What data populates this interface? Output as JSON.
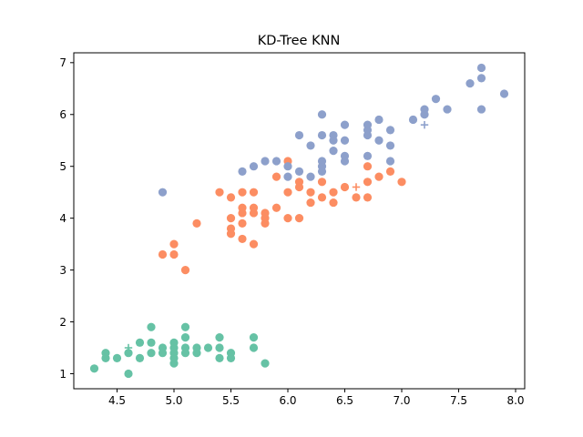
{
  "chart_data": {
    "type": "scatter",
    "title": "KD-Tree KNN",
    "xlabel": "",
    "ylabel": "",
    "xlim": [
      4.12,
      8.08
    ],
    "ylim": [
      0.71,
      7.19
    ],
    "xticks": [
      4.5,
      5.0,
      5.5,
      6.0,
      6.5,
      7.0,
      7.5,
      8.0
    ],
    "xtick_labels": [
      "4.5",
      "5.0",
      "5.5",
      "6.0",
      "6.5",
      "7.0",
      "7.5",
      "8.0"
    ],
    "yticks": [
      1,
      2,
      3,
      4,
      5,
      6,
      7
    ],
    "ytick_labels": [
      "1",
      "2",
      "3",
      "4",
      "5",
      "6",
      "7"
    ],
    "grid": false,
    "legend": "none",
    "series": [
      {
        "color": "#66c2a5",
        "marker": "circle",
        "points": [
          [
            4.3,
            1.1
          ],
          [
            4.4,
            1.3
          ],
          [
            4.4,
            1.4
          ],
          [
            4.5,
            1.3
          ],
          [
            4.6,
            1.0
          ],
          [
            4.6,
            1.4
          ],
          [
            4.7,
            1.3
          ],
          [
            4.7,
            1.6
          ],
          [
            4.8,
            1.4
          ],
          [
            4.8,
            1.6
          ],
          [
            4.8,
            1.9
          ],
          [
            4.9,
            1.4
          ],
          [
            4.9,
            1.5
          ],
          [
            5.0,
            1.2
          ],
          [
            5.0,
            1.3
          ],
          [
            5.0,
            1.4
          ],
          [
            5.0,
            1.5
          ],
          [
            5.0,
            1.6
          ],
          [
            5.1,
            1.4
          ],
          [
            5.1,
            1.5
          ],
          [
            5.1,
            1.7
          ],
          [
            5.1,
            1.9
          ],
          [
            5.2,
            1.4
          ],
          [
            5.2,
            1.5
          ],
          [
            5.3,
            1.5
          ],
          [
            5.4,
            1.3
          ],
          [
            5.4,
            1.5
          ],
          [
            5.4,
            1.7
          ],
          [
            5.5,
            1.3
          ],
          [
            5.5,
            1.4
          ],
          [
            5.7,
            1.5
          ],
          [
            5.7,
            1.7
          ],
          [
            5.8,
            1.2
          ]
        ]
      },
      {
        "color": "#fc8d62",
        "marker": "circle",
        "points": [
          [
            4.9,
            3.3
          ],
          [
            5.0,
            3.3
          ],
          [
            5.0,
            3.5
          ],
          [
            5.1,
            3.0
          ],
          [
            5.2,
            3.9
          ],
          [
            5.4,
            4.5
          ],
          [
            5.5,
            3.7
          ],
          [
            5.5,
            3.8
          ],
          [
            5.5,
            4.0
          ],
          [
            5.5,
            4.4
          ],
          [
            5.6,
            3.6
          ],
          [
            5.6,
            3.9
          ],
          [
            5.6,
            4.1
          ],
          [
            5.6,
            4.2
          ],
          [
            5.6,
            4.5
          ],
          [
            5.7,
            3.5
          ],
          [
            5.7,
            4.1
          ],
          [
            5.7,
            4.2
          ],
          [
            5.7,
            4.5
          ],
          [
            5.8,
            3.9
          ],
          [
            5.8,
            4.0
          ],
          [
            5.8,
            4.1
          ],
          [
            5.9,
            4.2
          ],
          [
            5.9,
            4.8
          ],
          [
            6.0,
            4.0
          ],
          [
            6.0,
            4.5
          ],
          [
            6.0,
            5.1
          ],
          [
            6.1,
            4.0
          ],
          [
            6.1,
            4.6
          ],
          [
            6.1,
            4.7
          ],
          [
            6.2,
            4.3
          ],
          [
            6.2,
            4.5
          ],
          [
            6.3,
            4.4
          ],
          [
            6.3,
            4.7
          ],
          [
            6.4,
            4.3
          ],
          [
            6.4,
            4.5
          ],
          [
            6.5,
            4.6
          ],
          [
            6.6,
            4.4
          ],
          [
            6.7,
            4.4
          ],
          [
            6.7,
            4.7
          ],
          [
            6.7,
            5.0
          ],
          [
            6.8,
            4.8
          ],
          [
            6.9,
            4.9
          ],
          [
            7.0,
            4.7
          ]
        ]
      },
      {
        "color": "#8da0cb",
        "marker": "circle",
        "points": [
          [
            4.9,
            4.5
          ],
          [
            5.6,
            4.9
          ],
          [
            5.7,
            5.0
          ],
          [
            5.8,
            5.1
          ],
          [
            5.9,
            5.1
          ],
          [
            6.0,
            4.8
          ],
          [
            6.0,
            5.0
          ],
          [
            6.1,
            4.9
          ],
          [
            6.1,
            5.6
          ],
          [
            6.2,
            4.8
          ],
          [
            6.2,
            5.4
          ],
          [
            6.3,
            4.9
          ],
          [
            6.3,
            5.0
          ],
          [
            6.3,
            5.1
          ],
          [
            6.3,
            5.6
          ],
          [
            6.3,
            6.0
          ],
          [
            6.4,
            5.3
          ],
          [
            6.4,
            5.5
          ],
          [
            6.4,
            5.6
          ],
          [
            6.5,
            5.1
          ],
          [
            6.5,
            5.2
          ],
          [
            6.5,
            5.5
          ],
          [
            6.5,
            5.8
          ],
          [
            6.7,
            5.2
          ],
          [
            6.7,
            5.6
          ],
          [
            6.7,
            5.7
          ],
          [
            6.7,
            5.8
          ],
          [
            6.8,
            5.5
          ],
          [
            6.8,
            5.9
          ],
          [
            6.9,
            5.1
          ],
          [
            6.9,
            5.4
          ],
          [
            6.9,
            5.7
          ],
          [
            7.1,
            5.9
          ],
          [
            7.2,
            6.0
          ],
          [
            7.2,
            6.1
          ],
          [
            7.3,
            6.3
          ],
          [
            7.4,
            6.1
          ],
          [
            7.6,
            6.6
          ],
          [
            7.7,
            6.1
          ],
          [
            7.7,
            6.7
          ],
          [
            7.7,
            6.9
          ],
          [
            7.9,
            6.4
          ]
        ]
      }
    ],
    "query_points": [
      {
        "color": "#66c2a5",
        "marker": "plus",
        "points": [
          [
            4.6,
            1.5
          ],
          [
            5.5,
            1.4
          ]
        ]
      },
      {
        "color": "#fc8d62",
        "marker": "plus",
        "points": [
          [
            6.6,
            4.6
          ]
        ]
      },
      {
        "color": "#8da0cb",
        "marker": "plus",
        "points": [
          [
            6.0,
            4.8
          ],
          [
            7.2,
            5.8
          ]
        ]
      }
    ]
  }
}
